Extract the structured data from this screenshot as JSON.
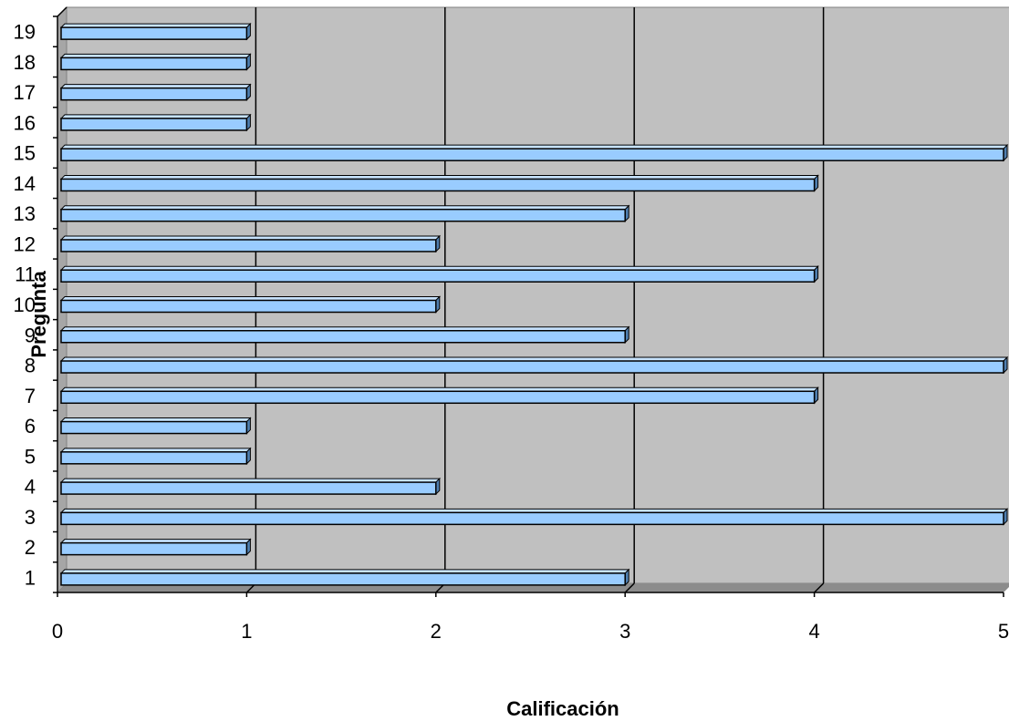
{
  "chart_data": {
    "type": "bar",
    "orientation": "horizontal",
    "style": "3d",
    "title": "",
    "xlabel": "Calificación",
    "ylabel": "Pregunta",
    "categories": [
      "1",
      "2",
      "3",
      "4",
      "5",
      "6",
      "7",
      "8",
      "9",
      "10",
      "11",
      "12",
      "13",
      "14",
      "15",
      "16",
      "17",
      "18",
      "19"
    ],
    "values": [
      3,
      1,
      5,
      2,
      1,
      1,
      4,
      5,
      3,
      2,
      4,
      2,
      3,
      4,
      5,
      1,
      1,
      1,
      1
    ],
    "xlim": [
      0,
      5
    ],
    "xticks": [
      "0",
      "1",
      "2",
      "3",
      "4",
      "5"
    ],
    "grid": "vertical",
    "legend": "none",
    "colors": {
      "bar_front": "#99ccff",
      "bar_top": "#c7e3ff",
      "bar_side": "#4f7fb0",
      "bar_edge": "#000000",
      "plot_background": "#c0c0c0",
      "plot_floor": "#8c8c8c",
      "gridline": "#000000"
    }
  }
}
